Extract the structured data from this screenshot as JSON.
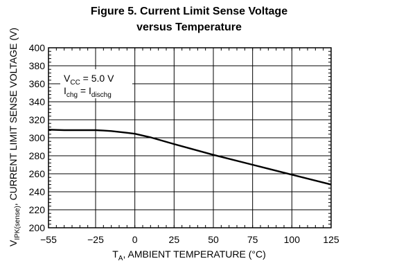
{
  "chart_data": {
    "type": "line",
    "title_lines": [
      "Figure 5. Current Limit Sense Voltage",
      "versus Temperature"
    ],
    "xlabel": {
      "main": "T",
      "sub": "A",
      "rest": ", AMBIENT TEMPERATURE (°C)"
    },
    "ylabel": {
      "main": "V",
      "sub": "IPK(sense)",
      "rest": ", CURRENT LIMIT SENSE VOLTAGE (V)"
    },
    "xlim": [
      -55,
      125
    ],
    "ylim": [
      200,
      400
    ],
    "x_ticks": [
      -55,
      -25,
      0,
      25,
      50,
      75,
      100,
      125
    ],
    "x_tick_labels": [
      "−55",
      "−25",
      "0",
      "25",
      "50",
      "75",
      "100",
      "125"
    ],
    "x_minor_step": 5,
    "y_ticks": [
      200,
      220,
      240,
      260,
      280,
      300,
      320,
      340,
      360,
      380,
      400
    ],
    "y_minor_step": 4,
    "grid": true,
    "annotation": [
      {
        "main": "V",
        "sub": "CC",
        "rest": " = 5.0 V"
      },
      {
        "main": "I",
        "sub": "chg",
        "rest": " = I",
        "sub2": "dischg"
      }
    ],
    "series": [
      {
        "x": [
          -55,
          -45,
          -35,
          -25,
          -20,
          -15,
          -10,
          -5,
          0,
          5,
          10,
          25,
          50,
          75,
          100,
          125
        ],
        "y": [
          309,
          308.5,
          308.5,
          308.5,
          308,
          307.5,
          306.5,
          305.5,
          304.5,
          302.5,
          300.5,
          293,
          281,
          270,
          259,
          248
        ]
      }
    ]
  }
}
